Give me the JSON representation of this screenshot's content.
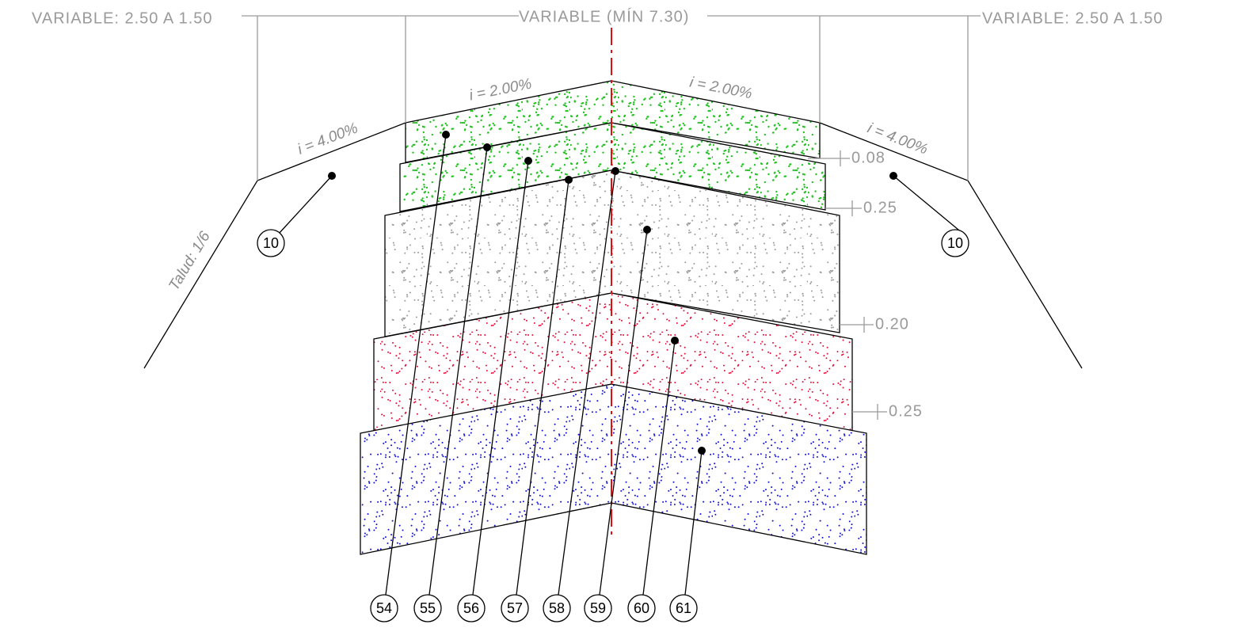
{
  "dimensions": {
    "left": "VARIABLE: 2.50 A 1.50",
    "center": "VARIABLE (MÍN 7.30)",
    "right": "VARIABLE: 2.50 A 1.50"
  },
  "slopes": {
    "left_shoulder": "i = 4.00%",
    "left_lane": "i = 2.00%",
    "right_lane": "i = 2.00%",
    "right_shoulder": "i = 4.00%",
    "talud": "Talud: 1/6"
  },
  "thicknesses": [
    "0.08",
    "0.25",
    "0.20",
    "0.25"
  ],
  "side_callouts": [
    "10",
    "10"
  ],
  "layer_callouts": [
    "54",
    "55",
    "56",
    "57",
    "58",
    "59",
    "60",
    "61"
  ]
}
